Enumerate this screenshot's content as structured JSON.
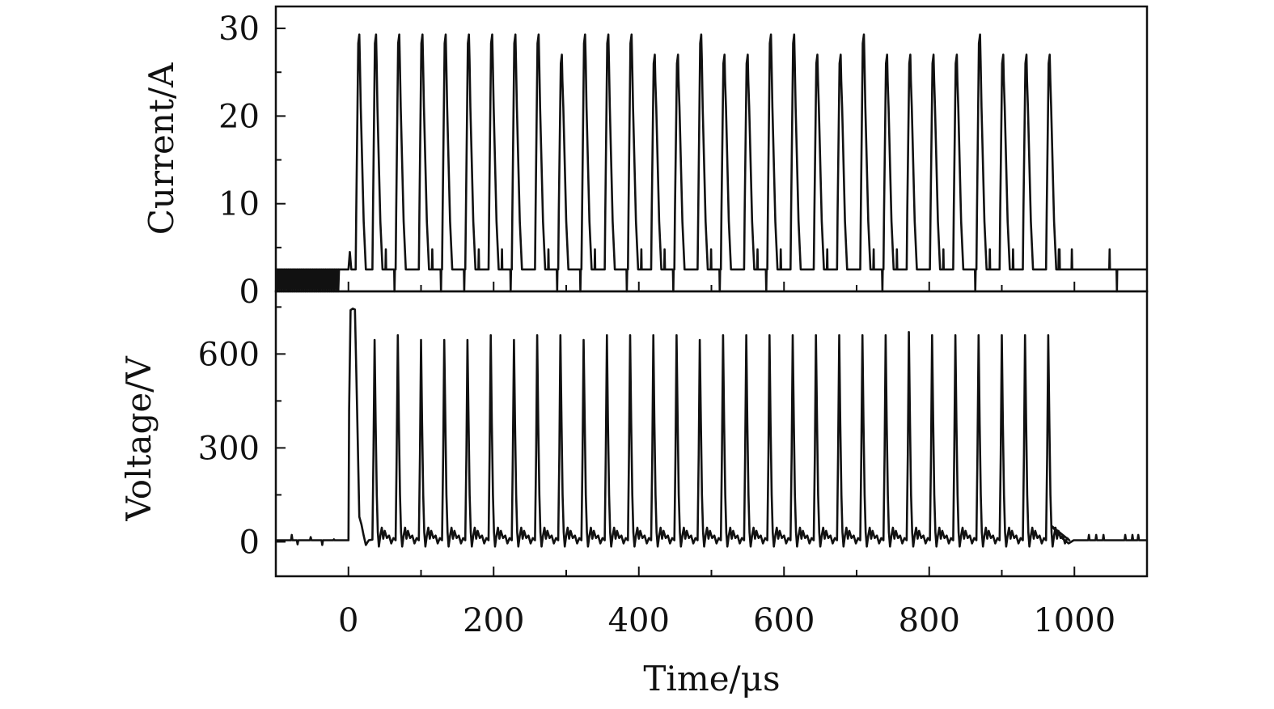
{
  "chart_data": [
    {
      "type": "line",
      "panel": "top",
      "ylabel": "Current/A",
      "xlim": [
        -100,
        1100
      ],
      "ylim": [
        0,
        32.5
      ],
      "yticks": [
        0,
        10,
        20,
        30
      ],
      "ytick_labels": [
        "0",
        "10",
        "20",
        "30"
      ],
      "baseline": 2.5,
      "series": [
        {
          "pulse_times": [
            15,
            38,
            70,
            102,
            134,
            166,
            198,
            230,
            262,
            294,
            326,
            358,
            390,
            422,
            454,
            486,
            518,
            550,
            582,
            614,
            646,
            678,
            710,
            742,
            774,
            806,
            838,
            870,
            902,
            934,
            966
          ],
          "pulse_peaks": [
            29.3,
            29.3,
            29.3,
            29.3,
            29.3,
            29.3,
            29.3,
            29.3,
            29.3,
            27,
            29.3,
            29.3,
            29.3,
            27,
            27,
            29.3,
            27,
            27,
            29.3,
            29.3,
            27,
            27,
            29.3,
            27,
            27,
            27,
            27,
            29.3,
            27,
            27,
            27
          ]
        }
      ]
    },
    {
      "type": "line",
      "panel": "bottom",
      "ylabel": "Voltage/V",
      "xlabel": "Time/μs",
      "xlim": [
        -100,
        1100
      ],
      "ylim": [
        -110,
        800
      ],
      "yticks": [
        0,
        300,
        600
      ],
      "ytick_labels": [
        "0",
        "300",
        "600"
      ],
      "xticks": [
        0,
        200,
        400,
        600,
        800,
        1000
      ],
      "xtick_labels": [
        "0",
        "200",
        "400",
        "600",
        "800",
        "1000"
      ],
      "baseline": 5,
      "series": [
        {
          "first_pulse": {
            "start": 0,
            "end": 20,
            "peak": 745
          },
          "pulse_times": [
            36,
            68,
            100,
            132,
            164,
            196,
            228,
            260,
            292,
            324,
            356,
            388,
            420,
            452,
            484,
            516,
            548,
            580,
            612,
            644,
            676,
            708,
            740,
            772,
            804,
            836,
            868,
            900,
            932,
            964
          ],
          "pulse_peaks": [
            645,
            660,
            645,
            645,
            645,
            660,
            645,
            660,
            660,
            645,
            660,
            660,
            660,
            660,
            645,
            660,
            660,
            660,
            660,
            660,
            660,
            660,
            660,
            670,
            660,
            660,
            660,
            660,
            660,
            660
          ]
        }
      ]
    }
  ]
}
